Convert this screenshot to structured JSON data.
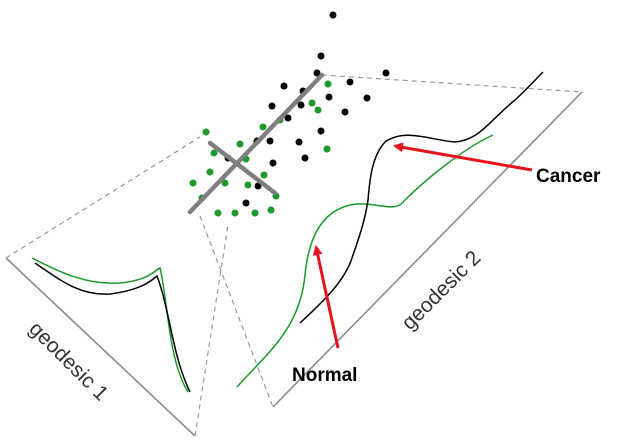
{
  "labels": {
    "cancer": "Cancer",
    "normal": "Normal",
    "geodesic_1": "geodesic 1",
    "geodesic_2": "geodesic 2"
  },
  "colors": {
    "cancer": "#000000",
    "normal": "#1a9a2a",
    "arrow": "#e8141b",
    "geodesic_axis": "#7f7f7f",
    "frame": "#8c8c8c"
  }
}
